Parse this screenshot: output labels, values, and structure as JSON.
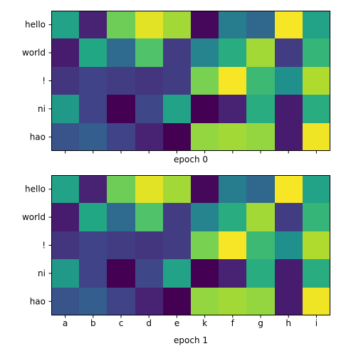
{
  "chart_data": [
    {
      "type": "heatmap",
      "title": "",
      "xlabel": "epoch 0",
      "ylabel": "",
      "x_categories": [
        "a",
        "b",
        "c",
        "d",
        "e",
        "k",
        "f",
        "g",
        "h",
        "i"
      ],
      "x_tick_labels_visible": false,
      "y_categories": [
        "hello",
        "world",
        "!",
        "ni",
        "hao"
      ],
      "colormap": "viridis",
      "vmin": 0,
      "vmax": 1,
      "grid": false,
      "values": [
        [
          0.58,
          0.1,
          0.78,
          0.96,
          0.86,
          0.02,
          0.42,
          0.34,
          0.99,
          0.58
        ],
        [
          0.08,
          0.6,
          0.35,
          0.72,
          0.18,
          0.45,
          0.62,
          0.86,
          0.18,
          0.66
        ],
        [
          0.16,
          0.2,
          0.18,
          0.16,
          0.18,
          0.8,
          0.99,
          0.68,
          0.5,
          0.88
        ],
        [
          0.54,
          0.2,
          0.0,
          0.22,
          0.58,
          0.0,
          0.1,
          0.62,
          0.08,
          0.62
        ],
        [
          0.26,
          0.3,
          0.2,
          0.1,
          0.0,
          0.84,
          0.86,
          0.84,
          0.08,
          0.98
        ]
      ]
    },
    {
      "type": "heatmap",
      "title": "",
      "xlabel": "epoch 1",
      "ylabel": "",
      "x_categories": [
        "a",
        "b",
        "c",
        "d",
        "e",
        "k",
        "f",
        "g",
        "h",
        "i"
      ],
      "x_tick_labels_visible": true,
      "y_categories": [
        "hello",
        "world",
        "!",
        "ni",
        "hao"
      ],
      "colormap": "viridis",
      "vmin": 0,
      "vmax": 1,
      "grid": false,
      "values": [
        [
          0.58,
          0.1,
          0.78,
          0.96,
          0.86,
          0.02,
          0.42,
          0.34,
          0.99,
          0.58
        ],
        [
          0.08,
          0.6,
          0.35,
          0.72,
          0.18,
          0.45,
          0.62,
          0.86,
          0.18,
          0.66
        ],
        [
          0.16,
          0.2,
          0.18,
          0.16,
          0.18,
          0.8,
          0.99,
          0.68,
          0.5,
          0.88
        ],
        [
          0.54,
          0.2,
          0.0,
          0.22,
          0.58,
          0.0,
          0.1,
          0.62,
          0.08,
          0.62
        ],
        [
          0.26,
          0.3,
          0.2,
          0.1,
          0.0,
          0.84,
          0.86,
          0.84,
          0.08,
          0.98
        ]
      ]
    }
  ]
}
